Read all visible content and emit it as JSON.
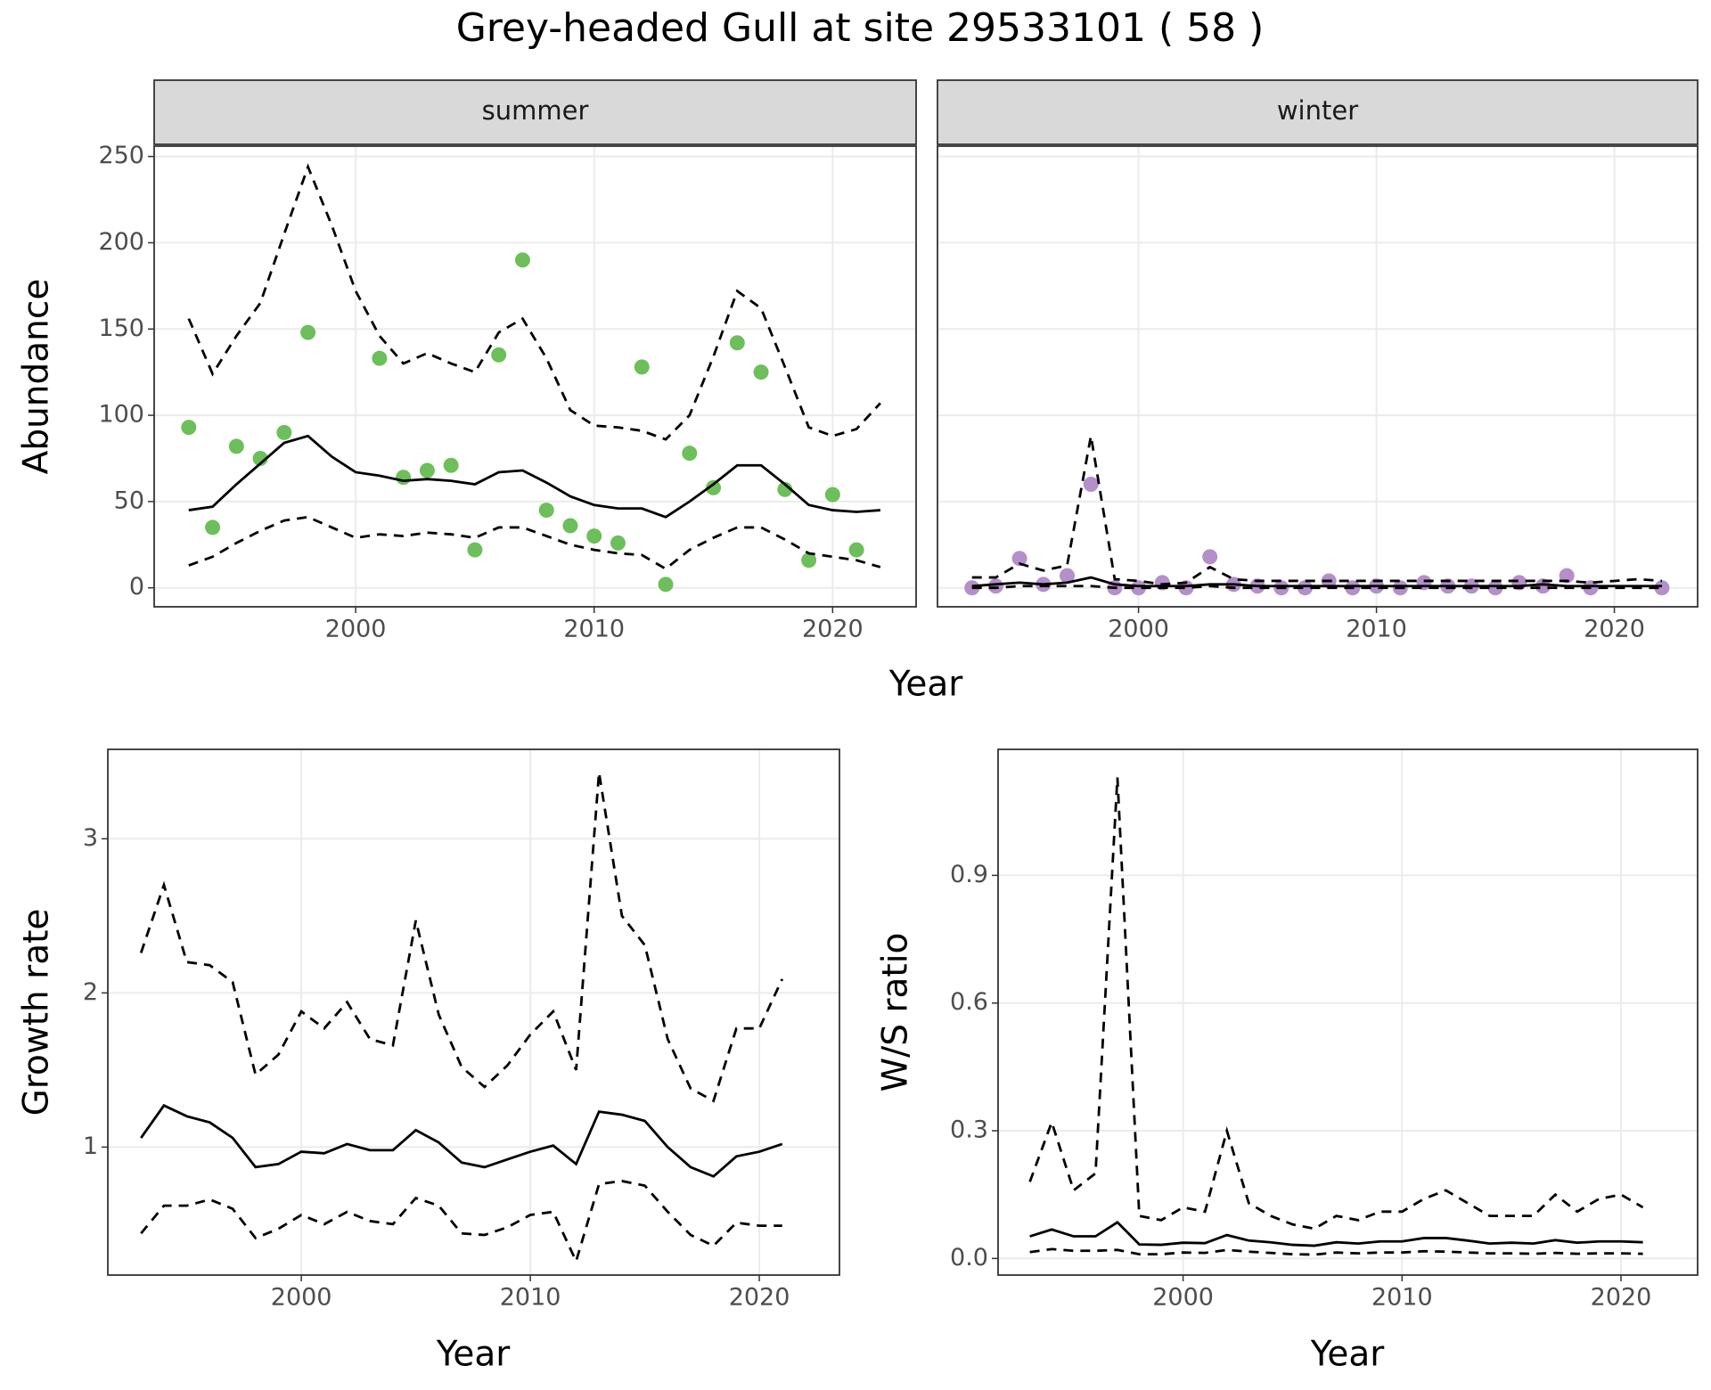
{
  "title": "Grey-headed Gull at site 29533101 ( 58 )",
  "chart_data": [
    {
      "type": "line",
      "strip_label": "summer",
      "xlabel": "Year",
      "ylabel": "Abundance",
      "x": [
        1993,
        1994,
        1995,
        1996,
        1997,
        1998,
        1999,
        2000,
        2001,
        2002,
        2003,
        2004,
        2005,
        2006,
        2007,
        2008,
        2009,
        2010,
        2011,
        2012,
        2013,
        2014,
        2015,
        2016,
        2017,
        2018,
        2019,
        2020,
        2021,
        2022
      ],
      "xlim": [
        1991.55,
        2023.5
      ],
      "xticks": [
        2000,
        2010,
        2020
      ],
      "ylim": [
        -11,
        256
      ],
      "yticks": [
        0,
        50,
        100,
        150,
        200,
        250
      ],
      "grid": true,
      "series": [
        {
          "kind": "point",
          "color": "#6dbf5b",
          "values": [
            93,
            35,
            82,
            75,
            90,
            148,
            null,
            null,
            133,
            64,
            68,
            71,
            22,
            135,
            190,
            45,
            36,
            30,
            26,
            128,
            2,
            78,
            58,
            142,
            125,
            57,
            16,
            54,
            22,
            null
          ]
        },
        {
          "kind": "line",
          "line_style": "solid",
          "color": "#000000",
          "values": [
            45,
            47,
            60,
            72,
            84,
            88,
            76,
            67,
            65,
            62,
            63,
            62,
            60,
            67,
            68,
            61,
            53,
            48,
            46,
            46,
            41,
            50,
            60,
            71,
            71,
            60,
            48,
            45,
            44,
            45
          ]
        },
        {
          "kind": "line",
          "line_style": "dashed",
          "color": "#000000",
          "values": [
            156,
            124,
            146,
            165,
            205,
            244,
            210,
            172,
            146,
            130,
            136,
            130,
            125,
            148,
            156,
            133,
            103,
            94,
            93,
            91,
            86,
            100,
            134,
            172,
            162,
            128,
            93,
            88,
            92,
            107
          ]
        },
        {
          "kind": "line",
          "line_style": "dashed",
          "color": "#000000",
          "values": [
            13,
            18,
            26,
            33,
            39,
            41,
            35,
            29,
            31,
            30,
            32,
            31,
            29,
            35,
            35,
            30,
            25,
            22,
            20,
            19,
            11,
            22,
            29,
            35,
            35,
            28,
            20,
            18,
            16,
            12
          ]
        }
      ]
    },
    {
      "type": "line",
      "strip_label": "winter",
      "sharey": true,
      "x": [
        1993,
        1994,
        1995,
        1996,
        1997,
        1998,
        1999,
        2000,
        2001,
        2002,
        2003,
        2004,
        2005,
        2006,
        2007,
        2008,
        2009,
        2010,
        2011,
        2012,
        2013,
        2014,
        2015,
        2016,
        2017,
        2018,
        2019,
        2020,
        2021,
        2022
      ],
      "xlim": [
        1991.55,
        2023.5
      ],
      "xticks": [
        2000,
        2010,
        2020
      ],
      "ylim": [
        -11,
        256
      ],
      "grid": true,
      "series": [
        {
          "kind": "point",
          "color": "#b48fca",
          "values": [
            0,
            1,
            17,
            2,
            7,
            60,
            0,
            0,
            3,
            0,
            18,
            2,
            1,
            0,
            0,
            4,
            0,
            1,
            0,
            3,
            1,
            1,
            0,
            3,
            1,
            7,
            0,
            null,
            null,
            0
          ]
        },
        {
          "kind": "line",
          "line_style": "solid",
          "color": "#000000",
          "values": [
            1,
            2,
            3,
            2,
            3,
            6,
            2,
            1,
            1,
            1,
            2,
            2,
            1,
            1,
            1,
            1,
            1,
            1,
            1,
            1,
            1,
            1,
            1,
            1,
            2,
            1,
            1,
            1,
            1,
            1
          ]
        },
        {
          "kind": "line",
          "line_style": "dashed",
          "color": "#000000",
          "values": [
            6,
            6,
            14,
            10,
            13,
            88,
            5,
            4,
            2,
            3,
            12,
            5,
            4,
            4,
            4,
            4,
            4,
            4,
            4,
            4,
            4,
            4,
            4,
            4,
            4,
            4,
            3,
            4,
            5,
            4
          ]
        },
        {
          "kind": "line",
          "line_style": "dashed",
          "color": "#000000",
          "values": [
            0,
            0,
            1,
            1,
            1,
            1,
            0,
            0,
            0,
            0,
            1,
            0,
            0,
            0,
            0,
            0,
            0,
            0,
            0,
            0,
            0,
            0,
            0,
            0,
            0,
            0,
            0,
            0,
            0,
            0
          ]
        }
      ]
    },
    {
      "type": "line",
      "xlabel": "Year",
      "ylabel": "Growth rate",
      "x": [
        1993,
        1994,
        1995,
        1996,
        1997,
        1998,
        1999,
        2000,
        2001,
        2002,
        2003,
        2004,
        2005,
        2006,
        2007,
        2008,
        2009,
        2010,
        2011,
        2012,
        2013,
        2014,
        2015,
        2016,
        2017,
        2018,
        2019,
        2020,
        2021
      ],
      "xlim": [
        1991.55,
        2023.5
      ],
      "xticks": [
        2000,
        2010,
        2020
      ],
      "ylim": [
        0.17,
        3.58
      ],
      "yticks": [
        1,
        2,
        3
      ],
      "grid": true,
      "series": [
        {
          "kind": "line",
          "line_style": "solid",
          "color": "#000000",
          "values": [
            1.06,
            1.27,
            1.2,
            1.16,
            1.06,
            0.87,
            0.89,
            0.97,
            0.96,
            1.02,
            0.98,
            0.98,
            1.11,
            1.03,
            0.9,
            0.87,
            0.92,
            0.97,
            1.01,
            0.89,
            1.23,
            1.21,
            1.17,
            1.0,
            0.87,
            0.81,
            0.94,
            0.97,
            1.02
          ]
        },
        {
          "kind": "line",
          "line_style": "dashed",
          "color": "#000000",
          "values": [
            2.26,
            2.7,
            2.2,
            2.18,
            2.07,
            1.47,
            1.6,
            1.88,
            1.77,
            1.94,
            1.7,
            1.66,
            2.47,
            1.86,
            1.52,
            1.39,
            1.53,
            1.73,
            1.88,
            1.5,
            3.43,
            2.5,
            2.31,
            1.7,
            1.38,
            1.3,
            1.77,
            1.77,
            2.09
          ]
        },
        {
          "kind": "line",
          "line_style": "dashed",
          "color": "#000000",
          "values": [
            0.44,
            0.62,
            0.62,
            0.66,
            0.6,
            0.41,
            0.47,
            0.56,
            0.5,
            0.58,
            0.52,
            0.5,
            0.67,
            0.62,
            0.44,
            0.43,
            0.48,
            0.56,
            0.58,
            0.26,
            0.76,
            0.78,
            0.75,
            0.58,
            0.43,
            0.36,
            0.51,
            0.49,
            0.49
          ]
        }
      ]
    },
    {
      "type": "line",
      "xlabel": "Year",
      "ylabel": "W/S ratio",
      "x": [
        1993,
        1994,
        1995,
        1996,
        1997,
        1998,
        1999,
        2000,
        2001,
        2002,
        2003,
        2004,
        2005,
        2006,
        2007,
        2008,
        2009,
        2010,
        2011,
        2012,
        2013,
        2014,
        2015,
        2016,
        2017,
        2018,
        2019,
        2020,
        2021
      ],
      "xlim": [
        1991.55,
        2023.5
      ],
      "xticks": [
        2000,
        2010,
        2020
      ],
      "ylim": [
        -0.039,
        1.196
      ],
      "yticks": [
        {
          "value": 0,
          "label": "0.0"
        },
        0.3,
        0.6,
        0.9
      ],
      "grid": true,
      "series": [
        {
          "kind": "line",
          "line_style": "solid",
          "color": "#000000",
          "values": [
            0.052,
            0.068,
            0.052,
            0.052,
            0.085,
            0.033,
            0.032,
            0.037,
            0.036,
            0.055,
            0.042,
            0.038,
            0.032,
            0.03,
            0.038,
            0.035,
            0.04,
            0.04,
            0.048,
            0.048,
            0.042,
            0.035,
            0.037,
            0.035,
            0.043,
            0.037,
            0.04,
            0.04,
            0.038
          ]
        },
        {
          "kind": "line",
          "line_style": "dashed",
          "color": "#000000",
          "values": [
            0.18,
            0.32,
            0.16,
            0.2,
            1.13,
            0.1,
            0.09,
            0.12,
            0.11,
            0.3,
            0.13,
            0.1,
            0.08,
            0.07,
            0.1,
            0.09,
            0.11,
            0.11,
            0.14,
            0.16,
            0.13,
            0.1,
            0.1,
            0.1,
            0.15,
            0.11,
            0.14,
            0.15,
            0.12
          ]
        },
        {
          "kind": "line",
          "line_style": "dashed",
          "color": "#000000",
          "values": [
            0.015,
            0.022,
            0.018,
            0.018,
            0.02,
            0.01,
            0.01,
            0.014,
            0.013,
            0.02,
            0.016,
            0.013,
            0.01,
            0.009,
            0.014,
            0.012,
            0.014,
            0.014,
            0.017,
            0.016,
            0.014,
            0.012,
            0.012,
            0.011,
            0.013,
            0.011,
            0.012,
            0.012,
            0.011
          ]
        }
      ]
    }
  ]
}
